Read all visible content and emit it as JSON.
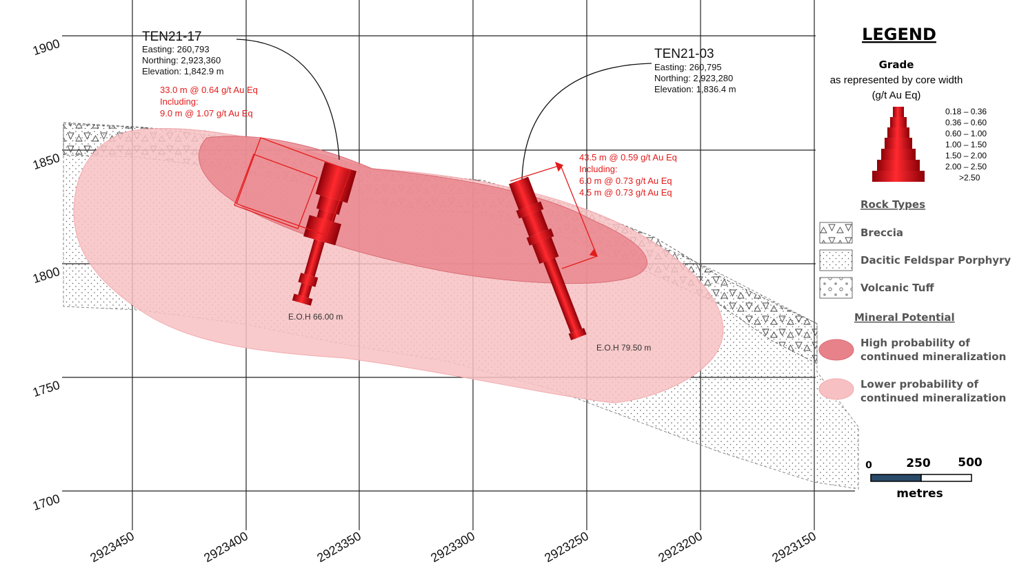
{
  "axes": {
    "y_ticks": [
      "1900",
      "1850",
      "1800",
      "1750",
      "1700"
    ],
    "x_ticks": [
      "2923450",
      "2923400",
      "2923350",
      "2923300",
      "2923250",
      "2923200",
      "2923150"
    ]
  },
  "holes": [
    {
      "id": "TEN21-17",
      "easting": "Easting: 260,793",
      "northing": "Northing: 2,923,360",
      "elevation": "Elevation: 1,842.9 m",
      "intercept": [
        "33.0 m @ 0.64 g/t Au Eq",
        "Including:",
        "9.0 m @ 1.07 g/t Au Eq"
      ],
      "eoh": "E.O.H 66.00 m"
    },
    {
      "id": "TEN21-03",
      "easting": "Easting: 260,795",
      "northing": "Northing: 2,923,280",
      "elevation": "Elevation: 1,836.4 m",
      "intercept": [
        "43.5 m @ 0.59 g/t Au Eq",
        "Including:",
        "6.0 m @ 0.73 g/t Au Eq",
        "4.5 m @ 0.73 g/t Au Eq"
      ],
      "eoh": "E.O.H 79.50 m"
    }
  ],
  "legend": {
    "title": "LEGEND",
    "grade_title": "Grade",
    "grade_sub1": "as represented by core width",
    "grade_sub2": "(g/t Au Eq)",
    "grade_bins": [
      "0.18 – 0.36",
      "0.36 – 0.60",
      "0.60 – 1.00",
      "1.00 – 1.50",
      "1.50 – 2.00",
      "2.00 – 2.50",
      ">2.50"
    ],
    "rock_types_title": "Rock Types",
    "rock_types": [
      "Breccia",
      "Dacitic Feldspar Porphyry",
      "Volcanic Tuff"
    ],
    "mineral_title": "Mineral Potential",
    "high": [
      "High probability of",
      "continued mineralization"
    ],
    "low": [
      "Lower probability of",
      "continued mineralization"
    ]
  },
  "scale": {
    "labels": [
      "0",
      "250",
      "500"
    ],
    "unit": "metres"
  },
  "colors": {
    "core": "#e0101a",
    "intercept": "#e31b1b",
    "high_zone": "#e8828a",
    "low_zone": "#f7c1c3"
  }
}
